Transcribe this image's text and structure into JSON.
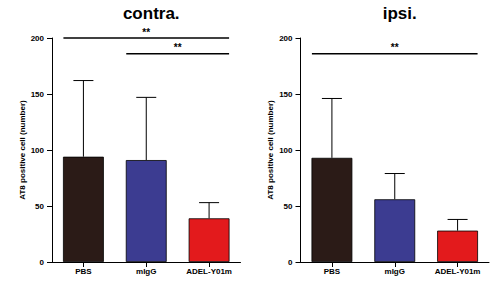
{
  "chart_data": [
    {
      "type": "bar",
      "title": "contra.",
      "y_label": "AT8 positive cell (number)",
      "categories": [
        "PBS",
        "mIgG",
        "ADEL-Y01m"
      ],
      "values": [
        94,
        91,
        39
      ],
      "errors": [
        68,
        56,
        14
      ],
      "colors": [
        "#2b1b17",
        "#3c3c91",
        "#e31a1c"
      ],
      "ylim": [
        0,
        200
      ],
      "yticks": [
        0,
        50,
        100,
        150,
        200
      ],
      "grid": false,
      "annotations": [
        {
          "from": "PBS",
          "to": "ADEL-Y01m",
          "label": "**"
        },
        {
          "from": "mIgG",
          "to": "ADEL-Y01m",
          "label": "**"
        }
      ]
    },
    {
      "type": "bar",
      "title": "ipsi.",
      "y_label": "AT8 positive cell (number)",
      "categories": [
        "PBS",
        "mIgG",
        "ADEL-Y01m"
      ],
      "values": [
        93,
        56,
        28
      ],
      "errors": [
        53,
        23,
        10
      ],
      "colors": [
        "#2b1b17",
        "#3c3c91",
        "#e31a1c"
      ],
      "ylim": [
        0,
        200
      ],
      "yticks": [
        0,
        50,
        100,
        150,
        200
      ],
      "grid": false,
      "annotations": [
        {
          "from": "PBS",
          "to": "ADEL-Y01m",
          "label": "**"
        }
      ]
    }
  ]
}
